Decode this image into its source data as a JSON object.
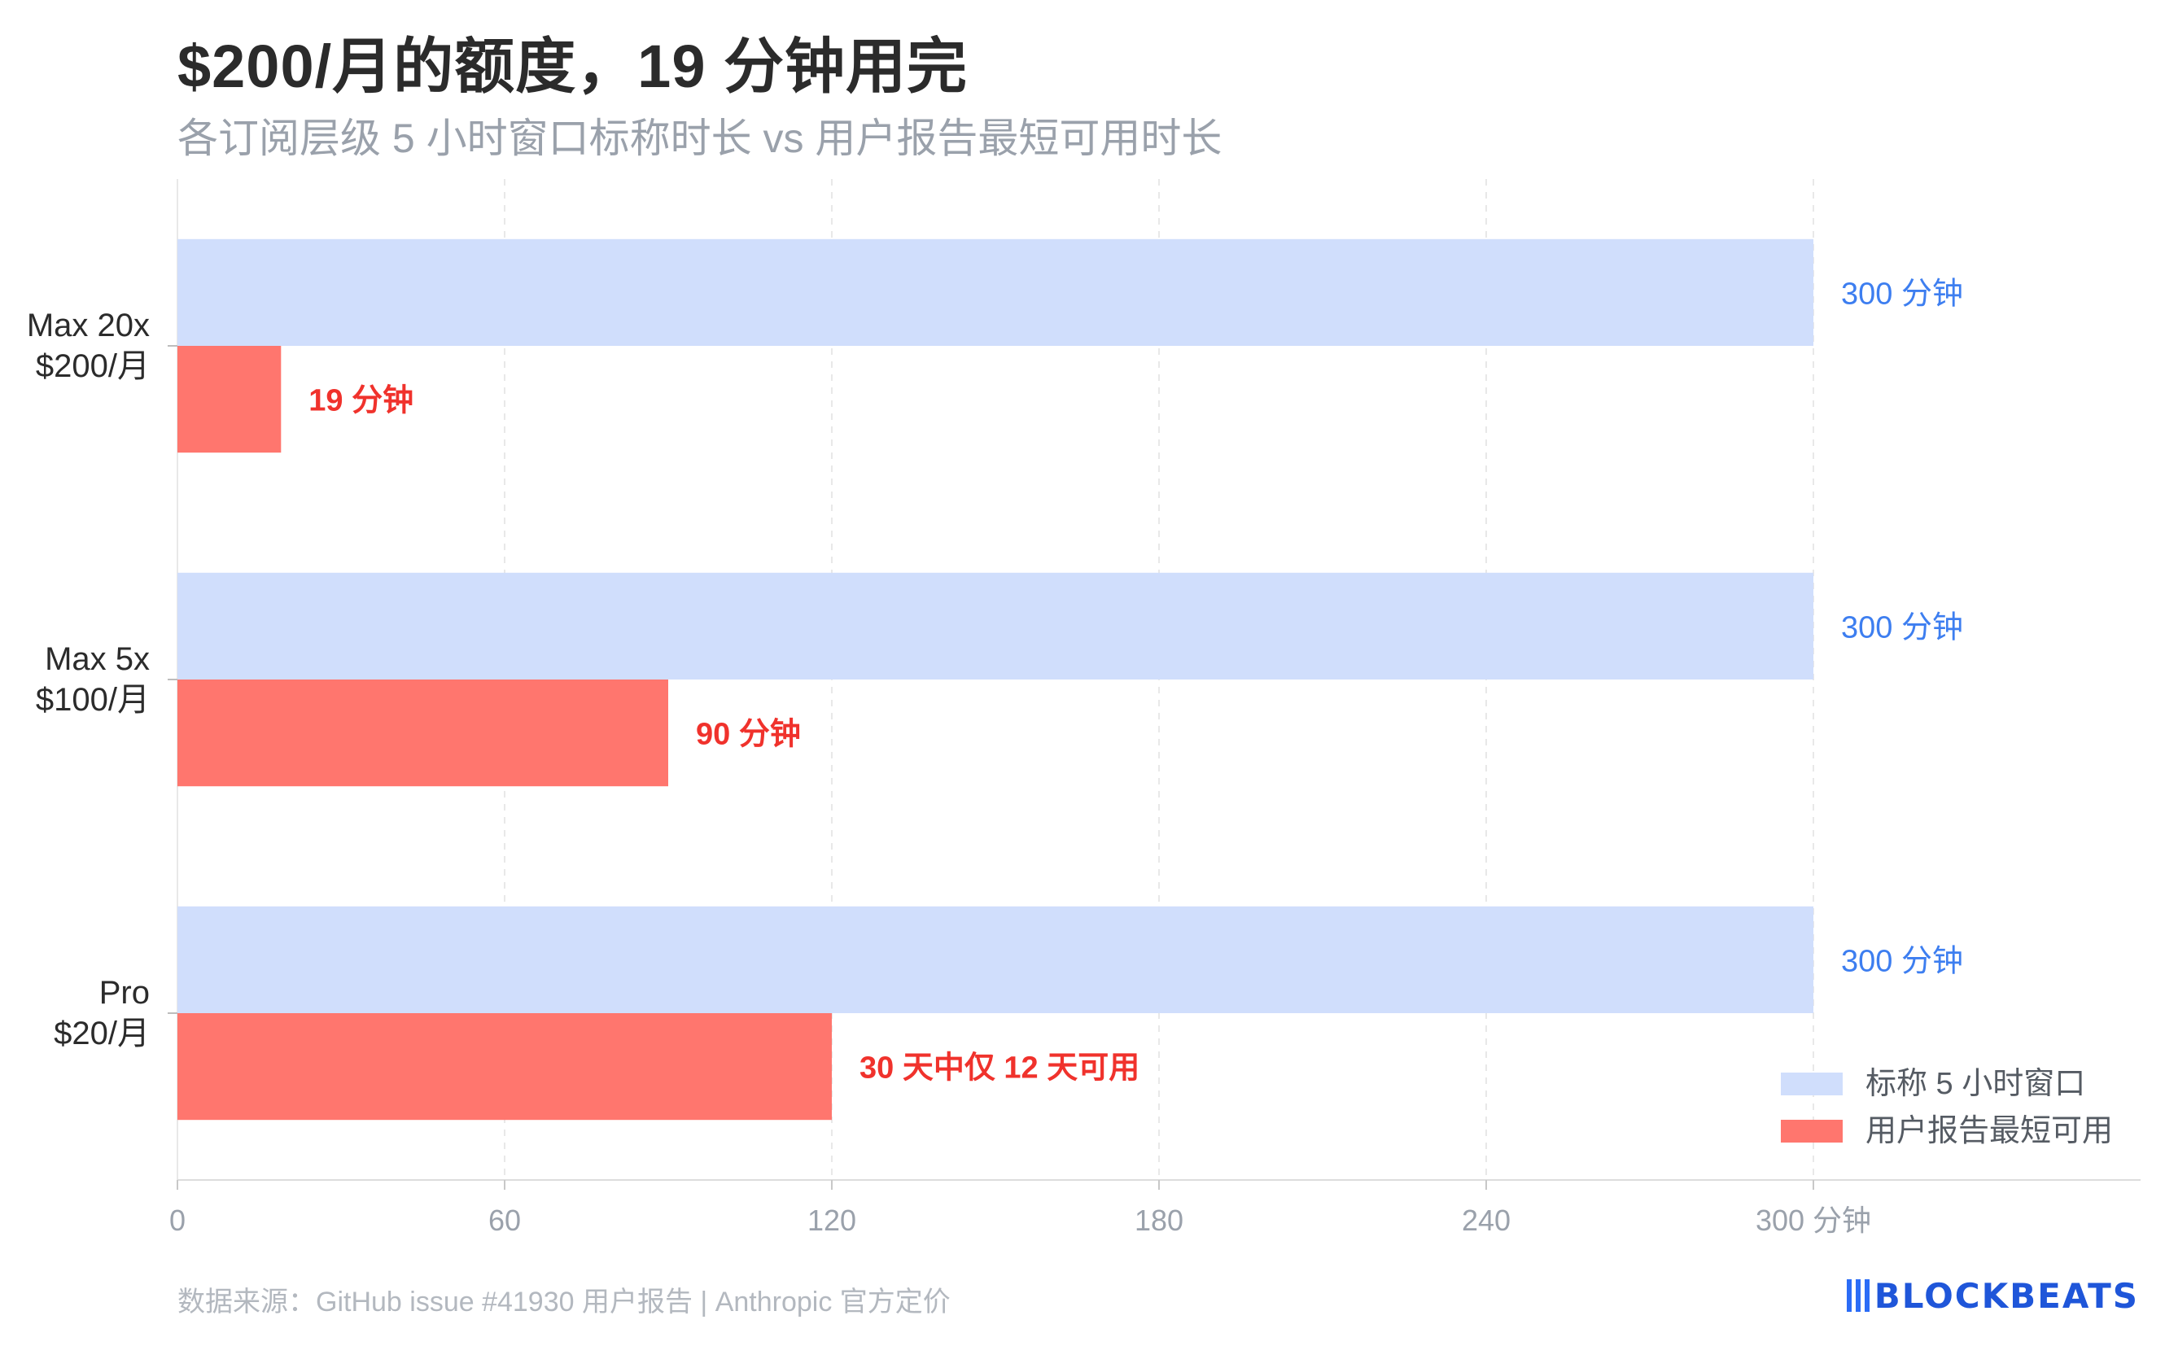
{
  "title": "$200/月的额度，19 分钟用完",
  "subtitle": "各订阅层级 5 小时窗口标称时长 vs 用户报告最短可用时长",
  "footer": "数据来源：GitHub issue #41930 用户报告 | Anthropic 官方定价",
  "logo_text": "BLOCKBEATS",
  "colors": {
    "nominal": "#d0defc",
    "nominal_label": "#3d7ef0",
    "reported": "#ff766e",
    "reported_label": "#f0322c",
    "axis_text": "#9aa1ab",
    "category_text": "#2b2b2b",
    "grid": "#e8e8e8"
  },
  "chart_data": {
    "type": "bar",
    "orientation": "horizontal",
    "categories": [
      [
        "Max 20x",
        "$200/月"
      ],
      [
        "Max 5x",
        "$100/月"
      ],
      [
        "Pro",
        "$20/月"
      ]
    ],
    "series": [
      {
        "name": "标称 5 小时窗口",
        "values": [
          300,
          300,
          300
        ],
        "labels": [
          "300 分钟",
          "300 分钟",
          "300 分钟"
        ]
      },
      {
        "name": "用户报告最短可用",
        "values": [
          19,
          90,
          120
        ],
        "labels": [
          "19 分钟",
          "90 分钟",
          "30 天中仅 12 天可用"
        ]
      }
    ],
    "xticks": [
      0,
      60,
      120,
      180,
      240,
      300
    ],
    "xtick_labels": [
      "0",
      "60",
      "120",
      "180",
      "240",
      "300 分钟"
    ],
    "xlim": [
      0,
      360
    ],
    "grid": "vertical dashed",
    "legend_position": "bottom-right"
  }
}
